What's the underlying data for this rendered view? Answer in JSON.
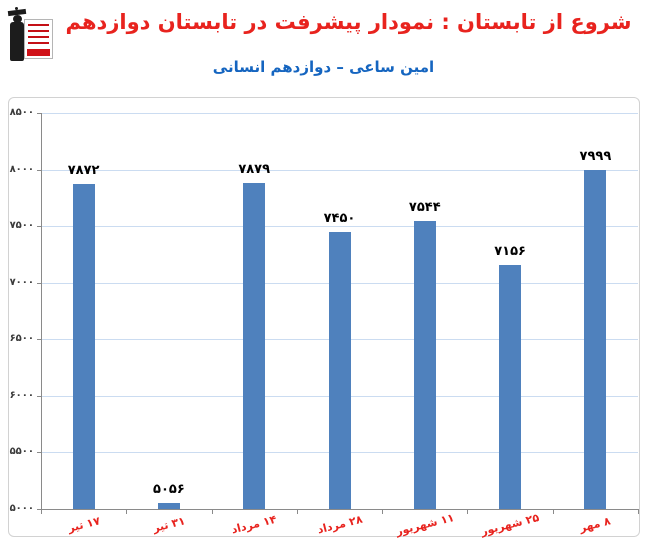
{
  "header": {
    "title": "شروع از تابستان : نمودار پیشرفت در تابستان دوازدهم",
    "title_color": "#E8231E",
    "subtitle": "امین ساعی – دوازدهم انسانی",
    "subtitle_color": "#1565C0"
  },
  "logo": {
    "icon": "graduate-logo"
  },
  "chart_data": {
    "type": "bar",
    "title": "شروع از تابستان : نمودار پیشرفت در تابستان دوازدهم",
    "subtitle": "امین ساعی – دوازدهم انسانی",
    "categories": [
      "۱۷ تیر",
      "۳۱ تیر",
      "۱۴ مرداد",
      "۲۸ مرداد",
      "۱۱ شهریور",
      "۲۵ شهریور",
      "۸ مهر"
    ],
    "categories_transliterated": [
      "17 Tir",
      "31 Tir",
      "14 Mordad",
      "28 Mordad",
      "11 Shahrivar",
      "25 Shahrivar",
      "8 Mehr"
    ],
    "values": [
      7872,
      5056,
      7879,
      7450,
      7544,
      7156,
      7999
    ],
    "value_labels": [
      "۷۸۷۲",
      "۵۰۵۶",
      "۷۸۷۹",
      "۷۴۵۰",
      "۷۵۴۴",
      "۷۱۵۶",
      "۷۹۹۹"
    ],
    "xlabel": "",
    "ylabel": "",
    "ylim": [
      5000,
      8500
    ],
    "yticks": [
      8500,
      8000,
      7500,
      7000,
      6500,
      6000,
      5500,
      5000
    ],
    "ytick_labels": [
      "۸۵۰۰",
      "۸۰۰۰",
      "۷۵۰۰",
      "۷۰۰۰",
      "۶۵۰۰",
      "۶۰۰۰",
      "۵۵۰۰",
      "۵۰۰۰"
    ],
    "grid": true,
    "legend": false,
    "bar_color": "#4F81BD",
    "gridline_color": "#CBDCF1",
    "axis_color": "#8A8A8A",
    "value_label_color": "#000000",
    "xtick_label_color": "#E8231E"
  }
}
